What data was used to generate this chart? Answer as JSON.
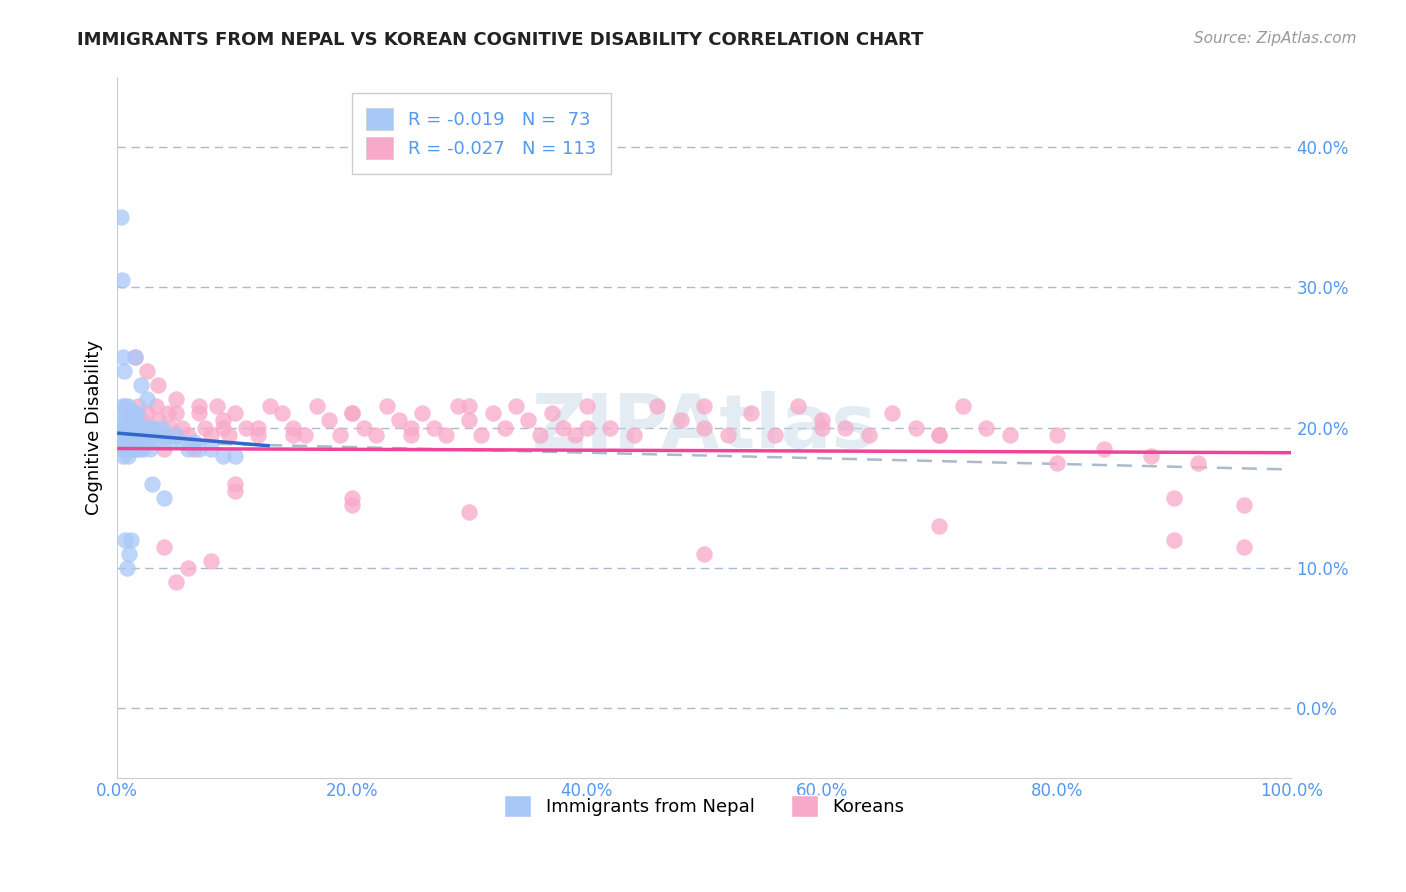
{
  "title": "IMMIGRANTS FROM NEPAL VS KOREAN COGNITIVE DISABILITY CORRELATION CHART",
  "source": "Source: ZipAtlas.com",
  "ylabel": "Cognitive Disability",
  "legend_label_1": "Immigrants from Nepal",
  "legend_label_2": "Koreans",
  "r1": -0.019,
  "n1": 73,
  "r2": -0.027,
  "n2": 113,
  "color1": "#a8c8f8",
  "color2": "#f8a8c8",
  "line_color1": "#3366cc",
  "line_color2": "#ee4499",
  "dashed_color": "#aabbcc",
  "axis_label_color": "#5599ee",
  "bg_color": "#ffffff",
  "xlim": [
    0.0,
    1.0
  ],
  "ylim": [
    -0.05,
    0.45
  ],
  "yticks": [
    0.0,
    0.1,
    0.2,
    0.3,
    0.4
  ],
  "xticks": [
    0.0,
    0.2,
    0.4,
    0.6,
    0.8,
    1.0
  ],
  "nepal_x": [
    0.002,
    0.003,
    0.004,
    0.004,
    0.005,
    0.005,
    0.005,
    0.006,
    0.006,
    0.007,
    0.007,
    0.008,
    0.008,
    0.008,
    0.009,
    0.009,
    0.01,
    0.01,
    0.01,
    0.011,
    0.011,
    0.012,
    0.012,
    0.013,
    0.013,
    0.014,
    0.014,
    0.015,
    0.015,
    0.015,
    0.016,
    0.016,
    0.017,
    0.017,
    0.018,
    0.018,
    0.019,
    0.02,
    0.021,
    0.022,
    0.023,
    0.024,
    0.025,
    0.026,
    0.027,
    0.028,
    0.03,
    0.032,
    0.035,
    0.038,
    0.04,
    0.045,
    0.05,
    0.055,
    0.06,
    0.065,
    0.07,
    0.08,
    0.09,
    0.1,
    0.003,
    0.004,
    0.005,
    0.006,
    0.007,
    0.008,
    0.01,
    0.012,
    0.015,
    0.02,
    0.025,
    0.03,
    0.04
  ],
  "nepal_y": [
    0.195,
    0.185,
    0.2,
    0.215,
    0.21,
    0.195,
    0.18,
    0.205,
    0.19,
    0.215,
    0.2,
    0.185,
    0.21,
    0.195,
    0.18,
    0.215,
    0.205,
    0.195,
    0.185,
    0.21,
    0.2,
    0.195,
    0.185,
    0.21,
    0.2,
    0.195,
    0.185,
    0.21,
    0.2,
    0.19,
    0.205,
    0.195,
    0.185,
    0.21,
    0.2,
    0.195,
    0.185,
    0.2,
    0.195,
    0.185,
    0.2,
    0.195,
    0.19,
    0.2,
    0.195,
    0.185,
    0.2,
    0.195,
    0.19,
    0.2,
    0.195,
    0.19,
    0.195,
    0.19,
    0.185,
    0.19,
    0.185,
    0.185,
    0.18,
    0.18,
    0.35,
    0.305,
    0.25,
    0.24,
    0.12,
    0.1,
    0.11,
    0.12,
    0.25,
    0.23,
    0.22,
    0.16,
    0.15
  ],
  "korean_x": [
    0.004,
    0.006,
    0.008,
    0.01,
    0.012,
    0.015,
    0.018,
    0.02,
    0.023,
    0.025,
    0.028,
    0.03,
    0.033,
    0.035,
    0.038,
    0.04,
    0.043,
    0.045,
    0.048,
    0.05,
    0.055,
    0.06,
    0.065,
    0.07,
    0.075,
    0.08,
    0.085,
    0.09,
    0.095,
    0.1,
    0.11,
    0.12,
    0.13,
    0.14,
    0.15,
    0.16,
    0.17,
    0.18,
    0.19,
    0.2,
    0.21,
    0.22,
    0.23,
    0.24,
    0.25,
    0.26,
    0.27,
    0.28,
    0.29,
    0.3,
    0.31,
    0.32,
    0.33,
    0.34,
    0.35,
    0.36,
    0.37,
    0.38,
    0.39,
    0.4,
    0.42,
    0.44,
    0.46,
    0.48,
    0.5,
    0.52,
    0.54,
    0.56,
    0.58,
    0.6,
    0.62,
    0.64,
    0.66,
    0.68,
    0.7,
    0.72,
    0.74,
    0.76,
    0.8,
    0.84,
    0.88,
    0.92,
    0.96,
    0.015,
    0.025,
    0.035,
    0.05,
    0.07,
    0.09,
    0.12,
    0.15,
    0.2,
    0.25,
    0.3,
    0.4,
    0.5,
    0.6,
    0.7,
    0.8,
    0.9,
    0.04,
    0.06,
    0.08,
    0.1,
    0.2,
    0.3,
    0.5,
    0.7,
    0.9,
    0.96,
    0.05,
    0.1,
    0.2
  ],
  "korean_y": [
    0.2,
    0.195,
    0.2,
    0.21,
    0.195,
    0.185,
    0.215,
    0.205,
    0.195,
    0.21,
    0.2,
    0.195,
    0.215,
    0.205,
    0.195,
    0.185,
    0.21,
    0.2,
    0.195,
    0.21,
    0.2,
    0.195,
    0.185,
    0.21,
    0.2,
    0.195,
    0.215,
    0.2,
    0.195,
    0.21,
    0.2,
    0.195,
    0.215,
    0.21,
    0.2,
    0.195,
    0.215,
    0.205,
    0.195,
    0.21,
    0.2,
    0.195,
    0.215,
    0.205,
    0.195,
    0.21,
    0.2,
    0.195,
    0.215,
    0.205,
    0.195,
    0.21,
    0.2,
    0.215,
    0.205,
    0.195,
    0.21,
    0.2,
    0.195,
    0.215,
    0.2,
    0.195,
    0.215,
    0.205,
    0.2,
    0.195,
    0.21,
    0.195,
    0.215,
    0.205,
    0.2,
    0.195,
    0.21,
    0.2,
    0.195,
    0.215,
    0.2,
    0.195,
    0.195,
    0.185,
    0.18,
    0.175,
    0.145,
    0.25,
    0.24,
    0.23,
    0.22,
    0.215,
    0.205,
    0.2,
    0.195,
    0.21,
    0.2,
    0.215,
    0.2,
    0.215,
    0.2,
    0.195,
    0.175,
    0.15,
    0.115,
    0.1,
    0.105,
    0.16,
    0.15,
    0.14,
    0.11,
    0.13,
    0.12,
    0.115,
    0.09,
    0.155,
    0.145
  ]
}
